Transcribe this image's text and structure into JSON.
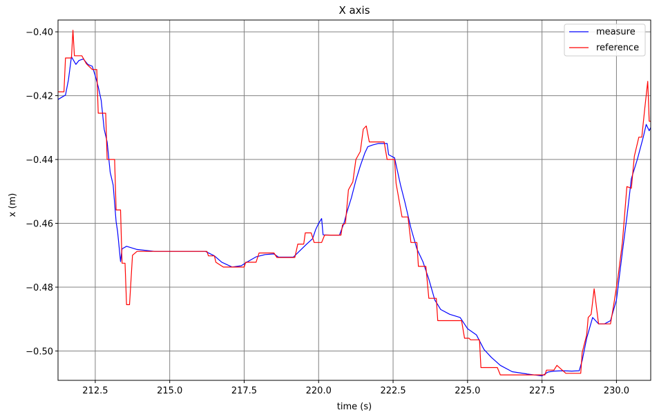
{
  "chart_data": {
    "type": "line",
    "title": "X axis",
    "xlabel": "time (s)",
    "ylabel": "x (m)",
    "xlim": [
      211.25,
      231.15
    ],
    "ylim": [
      -0.5092,
      -0.3963
    ],
    "xticks": [
      212.5,
      215.0,
      217.5,
      220.0,
      222.5,
      225.0,
      227.5,
      230.0
    ],
    "xtick_labels": [
      "212.5",
      "215.0",
      "217.5",
      "220.0",
      "222.5",
      "225.0",
      "227.5",
      "230.0"
    ],
    "yticks": [
      -0.4,
      -0.42,
      -0.44,
      -0.46,
      -0.48,
      -0.5
    ],
    "ytick_labels": [
      "−0.40",
      "−0.42",
      "−0.44",
      "−0.46",
      "−0.48",
      "−0.50"
    ],
    "grid": true,
    "legend_position": "top-right",
    "series": [
      {
        "name": "measure",
        "color": "#0000ff",
        "points": [
          [
            211.25,
            -0.4212
          ],
          [
            211.5,
            -0.4198
          ],
          [
            211.6,
            -0.415
          ],
          [
            211.7,
            -0.4078
          ],
          [
            211.85,
            -0.4102
          ],
          [
            211.95,
            -0.409
          ],
          [
            212.1,
            -0.4085
          ],
          [
            212.25,
            -0.4102
          ],
          [
            212.4,
            -0.4108
          ],
          [
            212.5,
            -0.4138
          ],
          [
            212.6,
            -0.4172
          ],
          [
            212.7,
            -0.4215
          ],
          [
            212.8,
            -0.4305
          ],
          [
            212.9,
            -0.4345
          ],
          [
            213.0,
            -0.444
          ],
          [
            213.1,
            -0.448
          ],
          [
            213.2,
            -0.4595
          ],
          [
            213.25,
            -0.4625
          ],
          [
            213.35,
            -0.472
          ],
          [
            213.4,
            -0.468
          ],
          [
            213.55,
            -0.4672
          ],
          [
            213.9,
            -0.4682
          ],
          [
            214.5,
            -0.4688
          ],
          [
            216.2,
            -0.4688
          ],
          [
            216.5,
            -0.4702
          ],
          [
            216.75,
            -0.4722
          ],
          [
            217.1,
            -0.4737
          ],
          [
            217.4,
            -0.4733
          ],
          [
            217.6,
            -0.4721
          ],
          [
            217.9,
            -0.4705
          ],
          [
            218.2,
            -0.4698
          ],
          [
            218.5,
            -0.4696
          ],
          [
            218.65,
            -0.4706
          ],
          [
            219.15,
            -0.4706
          ],
          [
            219.4,
            -0.4683
          ],
          [
            219.6,
            -0.4665
          ],
          [
            219.8,
            -0.4648
          ],
          [
            219.9,
            -0.462
          ],
          [
            220.0,
            -0.46
          ],
          [
            220.1,
            -0.4585
          ],
          [
            220.15,
            -0.4636
          ],
          [
            220.4,
            -0.4637
          ],
          [
            220.7,
            -0.4637
          ],
          [
            220.85,
            -0.46
          ],
          [
            220.95,
            -0.4565
          ],
          [
            221.1,
            -0.452
          ],
          [
            221.25,
            -0.4465
          ],
          [
            221.4,
            -0.442
          ],
          [
            221.55,
            -0.438
          ],
          [
            221.65,
            -0.436
          ],
          [
            221.8,
            -0.4355
          ],
          [
            222.0,
            -0.435
          ],
          [
            222.3,
            -0.435
          ],
          [
            222.35,
            -0.4385
          ],
          [
            222.55,
            -0.4395
          ],
          [
            222.75,
            -0.448
          ],
          [
            222.9,
            -0.4535
          ],
          [
            223.1,
            -0.4615
          ],
          [
            223.3,
            -0.468
          ],
          [
            223.5,
            -0.472
          ],
          [
            223.7,
            -0.4775
          ],
          [
            223.9,
            -0.484
          ],
          [
            224.1,
            -0.487
          ],
          [
            224.4,
            -0.4885
          ],
          [
            224.75,
            -0.4895
          ],
          [
            225.0,
            -0.493
          ],
          [
            225.3,
            -0.495
          ],
          [
            225.55,
            -0.4995
          ],
          [
            225.8,
            -0.502
          ],
          [
            226.1,
            -0.5045
          ],
          [
            226.5,
            -0.5065
          ],
          [
            227.0,
            -0.5072
          ],
          [
            227.5,
            -0.5078
          ],
          [
            227.7,
            -0.5066
          ],
          [
            227.9,
            -0.5063
          ],
          [
            228.2,
            -0.5062
          ],
          [
            228.5,
            -0.5063
          ],
          [
            228.75,
            -0.5062
          ],
          [
            228.85,
            -0.503
          ],
          [
            229.0,
            -0.496
          ],
          [
            229.2,
            -0.4895
          ],
          [
            229.4,
            -0.4915
          ],
          [
            229.6,
            -0.4915
          ],
          [
            229.8,
            -0.4905
          ],
          [
            230.0,
            -0.484
          ],
          [
            230.2,
            -0.469
          ],
          [
            230.35,
            -0.458
          ],
          [
            230.5,
            -0.446
          ],
          [
            230.7,
            -0.44
          ],
          [
            230.9,
            -0.433
          ],
          [
            231.0,
            -0.429
          ],
          [
            231.1,
            -0.431
          ],
          [
            231.15,
            -0.43
          ]
        ]
      },
      {
        "name": "reference",
        "color": "#ff0000",
        "points": [
          [
            211.25,
            -0.4188
          ],
          [
            211.45,
            -0.4188
          ],
          [
            211.5,
            -0.4082
          ],
          [
            211.7,
            -0.4082
          ],
          [
            211.75,
            -0.3995
          ],
          [
            211.8,
            -0.4075
          ],
          [
            212.05,
            -0.4075
          ],
          [
            212.2,
            -0.41
          ],
          [
            212.4,
            -0.4118
          ],
          [
            212.55,
            -0.4118
          ],
          [
            212.6,
            -0.4255
          ],
          [
            212.85,
            -0.4255
          ],
          [
            212.9,
            -0.44
          ],
          [
            213.15,
            -0.44
          ],
          [
            213.2,
            -0.4558
          ],
          [
            213.35,
            -0.4558
          ],
          [
            213.4,
            -0.4725
          ],
          [
            213.5,
            -0.4725
          ],
          [
            213.55,
            -0.4855
          ],
          [
            213.65,
            -0.4855
          ],
          [
            213.75,
            -0.47
          ],
          [
            213.9,
            -0.4688
          ],
          [
            214.5,
            -0.4688
          ],
          [
            216.25,
            -0.4688
          ],
          [
            216.3,
            -0.4702
          ],
          [
            216.5,
            -0.4702
          ],
          [
            216.55,
            -0.4722
          ],
          [
            216.8,
            -0.4737
          ],
          [
            217.5,
            -0.4737
          ],
          [
            217.55,
            -0.4722
          ],
          [
            217.9,
            -0.4722
          ],
          [
            218.0,
            -0.4693
          ],
          [
            218.5,
            -0.4693
          ],
          [
            218.6,
            -0.4707
          ],
          [
            219.2,
            -0.4707
          ],
          [
            219.3,
            -0.4665
          ],
          [
            219.5,
            -0.4665
          ],
          [
            219.55,
            -0.463
          ],
          [
            219.75,
            -0.463
          ],
          [
            219.85,
            -0.466
          ],
          [
            220.1,
            -0.466
          ],
          [
            220.2,
            -0.4637
          ],
          [
            220.75,
            -0.4637
          ],
          [
            220.8,
            -0.4605
          ],
          [
            220.9,
            -0.46
          ],
          [
            221.0,
            -0.4495
          ],
          [
            221.15,
            -0.447
          ],
          [
            221.25,
            -0.44
          ],
          [
            221.4,
            -0.4375
          ],
          [
            221.5,
            -0.4305
          ],
          [
            221.6,
            -0.4295
          ],
          [
            221.7,
            -0.4345
          ],
          [
            222.2,
            -0.4345
          ],
          [
            222.3,
            -0.44
          ],
          [
            222.55,
            -0.44
          ],
          [
            222.6,
            -0.4475
          ],
          [
            222.8,
            -0.458
          ],
          [
            223.0,
            -0.458
          ],
          [
            223.1,
            -0.466
          ],
          [
            223.3,
            -0.466
          ],
          [
            223.35,
            -0.4735
          ],
          [
            223.6,
            -0.4735
          ],
          [
            223.7,
            -0.4835
          ],
          [
            223.95,
            -0.4835
          ],
          [
            224.0,
            -0.4905
          ],
          [
            224.8,
            -0.4905
          ],
          [
            224.9,
            -0.496
          ],
          [
            225.05,
            -0.496
          ],
          [
            225.1,
            -0.4965
          ],
          [
            225.4,
            -0.4965
          ],
          [
            225.45,
            -0.5052
          ],
          [
            226.0,
            -0.5052
          ],
          [
            226.1,
            -0.5075
          ],
          [
            227.0,
            -0.5075
          ],
          [
            227.6,
            -0.5075
          ],
          [
            227.65,
            -0.506
          ],
          [
            227.9,
            -0.506
          ],
          [
            228.0,
            -0.5045
          ],
          [
            228.3,
            -0.507
          ],
          [
            228.5,
            -0.507
          ],
          [
            228.8,
            -0.507
          ],
          [
            228.85,
            -0.5005
          ],
          [
            229.0,
            -0.495
          ],
          [
            229.05,
            -0.4895
          ],
          [
            229.15,
            -0.4885
          ],
          [
            229.25,
            -0.4805
          ],
          [
            229.4,
            -0.4915
          ],
          [
            229.8,
            -0.4915
          ],
          [
            229.9,
            -0.486
          ],
          [
            230.05,
            -0.477
          ],
          [
            230.2,
            -0.466
          ],
          [
            230.35,
            -0.4485
          ],
          [
            230.5,
            -0.449
          ],
          [
            230.6,
            -0.439
          ],
          [
            230.75,
            -0.433
          ],
          [
            230.85,
            -0.433
          ],
          [
            230.95,
            -0.424
          ],
          [
            231.05,
            -0.4155
          ],
          [
            231.1,
            -0.428
          ],
          [
            231.15,
            -0.428
          ]
        ]
      }
    ]
  }
}
